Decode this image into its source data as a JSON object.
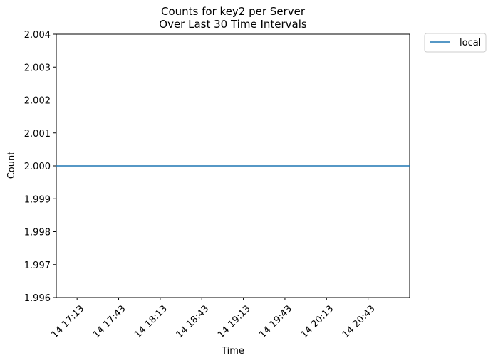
{
  "chart_data": {
    "type": "line",
    "title": "Counts for key2 per Server",
    "subtitle": "Over Last 30 Time Intervals",
    "xlabel": "Time",
    "ylabel": "Count",
    "x_ticks": [
      "14 17:13",
      "14 17:43",
      "14 18:13",
      "14 18:43",
      "14 19:13",
      "14 19:43",
      "14 20:13",
      "14 20:43"
    ],
    "y_ticks": [
      "1.996",
      "1.997",
      "1.998",
      "1.999",
      "2.000",
      "2.001",
      "2.002",
      "2.003",
      "2.004"
    ],
    "ylim": [
      1.996,
      2.004
    ],
    "grid": false,
    "legend_position": "outside-top-right",
    "series": [
      {
        "name": "local",
        "color": "#1f77b4",
        "x": [
          "14 16:58",
          "14 21:13"
        ],
        "y": [
          2.0,
          2.0
        ]
      }
    ]
  }
}
